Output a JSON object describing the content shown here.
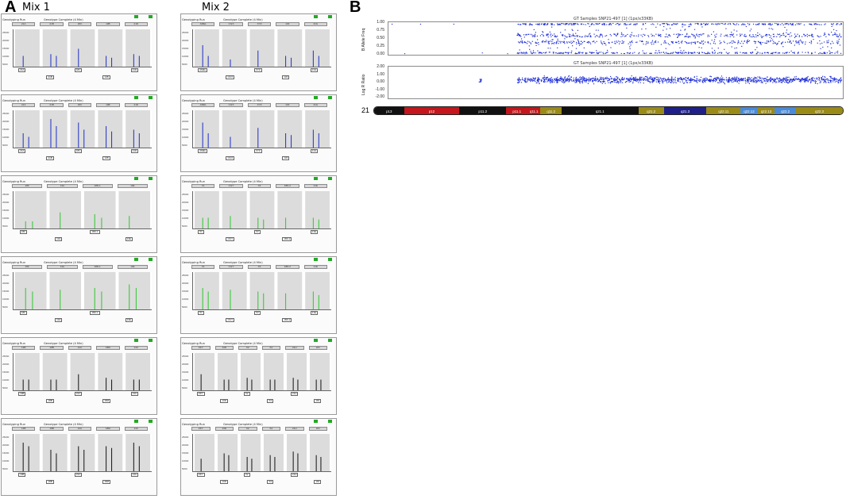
{
  "panel_a_letter": "A",
  "panel_b_letter": "B",
  "mix1_title": "Mix 1",
  "mix2_title": "Mix 2",
  "panel_a": {
    "header_subtitle": "Genotyping Run",
    "header_dye": "Genotype Complete (4 Min)",
    "yticks": [
      "25000",
      "20000",
      "15000",
      "10000",
      "5000"
    ],
    "mix1": [
      {
        "color": "#2c3cc8",
        "boxes": [
          "21A",
          "21B",
          "18C",
          "13B",
          "21D"
        ],
        "heights": [
          [
            0.3
          ],
          [
            0.35,
            0.3
          ],
          [
            0.5
          ],
          [
            0.3,
            0.25
          ],
          [
            0.35,
            0.3
          ]
        ],
        "labels": [
          "21A",
          "21B",
          "18C",
          "13B",
          "21D"
        ]
      },
      {
        "color": "#2c3cc8",
        "boxes": [
          "21A",
          "21B",
          "18C",
          "13B",
          "21D"
        ],
        "heights": [
          [
            0.4,
            0.3
          ],
          [
            0.8,
            0.6
          ],
          [
            0.7,
            0.5
          ],
          [
            0.6,
            0.45
          ],
          [
            0.5,
            0.4
          ]
        ],
        "labels": [
          "21A",
          "21B",
          "18C",
          "13B",
          "21D"
        ]
      },
      {
        "color": "#3cc83c",
        "boxes": [
          "18F",
          "13A",
          "18D-1",
          "13E"
        ],
        "heights": [
          [
            0.2,
            0.2
          ],
          [
            0.45
          ],
          [
            0.4,
            0.3
          ],
          [
            0.35
          ]
        ],
        "labels": [
          "18F",
          "13A",
          "18D-1",
          "13E"
        ]
      },
      {
        "color": "#3cc83c",
        "boxes": [
          "18F",
          "13A",
          "18D-1",
          "13E"
        ],
        "heights": [
          [
            0.6,
            0.5
          ],
          [
            0.55
          ],
          [
            0.6,
            0.5
          ],
          [
            0.7,
            0.6
          ]
        ],
        "labels": [
          "18F",
          "13A",
          "18D-1",
          "13E"
        ]
      },
      {
        "color": "#222222",
        "boxes": [
          "13B",
          "18B",
          "21C",
          "18M",
          "13C"
        ],
        "heights": [
          [
            0.3,
            0.3
          ],
          [
            0.3,
            0.3
          ],
          [
            0.45
          ],
          [
            0.35,
            0.3
          ],
          [
            0.3,
            0.3
          ]
        ],
        "labels": [
          "13B",
          "18B",
          "21C",
          "18M",
          "13C"
        ]
      },
      {
        "color": "#222222",
        "boxes": [
          "13B",
          "18B",
          "21C",
          "18M",
          "13C"
        ],
        "heights": [
          [
            0.8,
            0.7
          ],
          [
            0.6,
            0.5
          ],
          [
            0.7,
            0.6
          ],
          [
            0.7,
            0.65
          ],
          [
            0.8,
            0.7
          ]
        ],
        "labels": [
          "13B",
          "18B",
          "21C",
          "18M",
          "13C"
        ]
      }
    ],
    "mix2": [
      {
        "color": "#2c3cc8",
        "boxes": [
          "AMEL",
          "ChrX",
          "XYZ",
          "13F",
          "21G"
        ],
        "heights": [
          [
            0.6,
            0.3
          ],
          [
            0.2
          ],
          [
            0.45
          ],
          [
            0.3,
            0.25
          ],
          [
            0.45,
            0.3
          ]
        ],
        "labels": [
          "AMEL",
          "ChrX",
          "XYZ",
          "13F",
          "21G"
        ]
      },
      {
        "color": "#2c3cc8",
        "boxes": [
          "AMEL",
          "ChrX",
          "XYZ",
          "13F",
          "21G"
        ],
        "heights": [
          [
            0.7,
            0.4
          ],
          [
            0.3
          ],
          [
            0.55
          ],
          [
            0.4,
            0.35
          ],
          [
            0.5,
            0.4
          ]
        ],
        "labels": [
          "AMEL",
          "ChrX",
          "XYZ",
          "13F",
          "21G"
        ]
      },
      {
        "color": "#3cc83c",
        "boxes": [
          "X1",
          "ChrY",
          "X3",
          "18D-2",
          "21E"
        ],
        "heights": [
          [
            0.3,
            0.3
          ],
          [
            0.35
          ],
          [
            0.3,
            0.25
          ],
          [
            0.3
          ],
          [
            0.3,
            0.25
          ]
        ],
        "labels": [
          "X1",
          "ChrY",
          "X3",
          "18D-2",
          "21E"
        ]
      },
      {
        "color": "#3cc83c",
        "boxes": [
          "X1",
          "ChrY",
          "X3",
          "18D-2",
          "21E"
        ],
        "heights": [
          [
            0.6,
            0.5
          ],
          [
            0.55
          ],
          [
            0.5,
            0.45
          ],
          [
            0.45
          ],
          [
            0.5,
            0.4
          ]
        ],
        "labels": [
          "X1",
          "ChrY",
          "X3",
          "18D-2",
          "21E"
        ]
      },
      {
        "color": "#222222",
        "boxes": [
          "ZFY",
          "13D",
          "X2",
          "X4",
          "21H",
          "18J"
        ],
        "heights": [
          [
            0.45
          ],
          [
            0.3,
            0.3
          ],
          [
            0.35,
            0.3
          ],
          [
            0.3,
            0.3
          ],
          [
            0.35,
            0.3
          ],
          [
            0.3,
            0.3
          ]
        ],
        "labels": [
          "ZFY",
          "13D",
          "X2",
          "X4",
          "21H",
          "18J"
        ]
      },
      {
        "color": "#222222",
        "boxes": [
          "ZFY",
          "13D",
          "X2",
          "X4",
          "21H",
          "18J"
        ],
        "heights": [
          [
            0.35
          ],
          [
            0.5,
            0.45
          ],
          [
            0.4,
            0.35
          ],
          [
            0.45,
            0.4
          ],
          [
            0.55,
            0.5
          ],
          [
            0.45,
            0.4
          ]
        ],
        "labels": [
          "ZFY",
          "13D",
          "X2",
          "X4",
          "21H",
          "18J"
        ]
      }
    ]
  },
  "panel_b": {
    "chart_data": [
      {
        "type": "scatter",
        "title": "GT Samples SNP21-497 [1] (1px/x33KB)",
        "ylabel": "B Allele Freq",
        "yticks": [
          "1.00",
          "0.75",
          "0.50",
          "0.25",
          "0.00"
        ],
        "ylim": [
          0,
          1
        ],
        "xlim": [
          0,
          1
        ],
        "color": "#1f2fd6",
        "series": [
          {
            "values_y": [
              1.0,
              0.0,
              0.5,
              0.6,
              0.4,
              0.75,
              0.25
            ]
          }
        ]
      },
      {
        "type": "scatter",
        "title": "GT Samples SNP21-497 [1] (1px/x33KB)",
        "ylabel": "Log R Ratio",
        "yticks": [
          "2.00",
          "1.00",
          "0.00",
          "-1.00",
          "-2.00"
        ],
        "ylim": [
          -2,
          2
        ],
        "xlim": [
          0,
          1
        ],
        "color": "#1f2fd6",
        "series": [
          {
            "values_y": [
              0.05
            ]
          }
        ]
      }
    ],
    "chromosome": {
      "number": "21",
      "bands": [
        {
          "name": "p13",
          "color": "#111111",
          "w": 0.07
        },
        {
          "name": "p12",
          "color": "#c4161c",
          "w": 0.13
        },
        {
          "name": "p11.2",
          "color": "#111111",
          "w": 0.11
        },
        {
          "name": "p11.1",
          "color": "#c4161c",
          "w": 0.05
        },
        {
          "name": "q11.1",
          "color": "#c4161c",
          "w": 0.03
        },
        {
          "name": "q11.2",
          "color": "#9a8a16",
          "w": 0.05
        },
        {
          "name": "q21.1",
          "color": "#111111",
          "w": 0.18
        },
        {
          "name": "q21.2",
          "color": "#9a8a16",
          "w": 0.06
        },
        {
          "name": "q21.3",
          "color": "#1f1f8a",
          "w": 0.1
        },
        {
          "name": "q22.11",
          "color": "#9a8a16",
          "w": 0.08
        },
        {
          "name": "q22.12",
          "color": "#4a8ad8",
          "w": 0.04
        },
        {
          "name": "q22.13",
          "color": "#9a8a16",
          "w": 0.04
        },
        {
          "name": "q22.2",
          "color": "#4a8ad8",
          "w": 0.05
        },
        {
          "name": "q22.3",
          "color": "#9a8a16",
          "w": 0.11
        }
      ]
    }
  }
}
